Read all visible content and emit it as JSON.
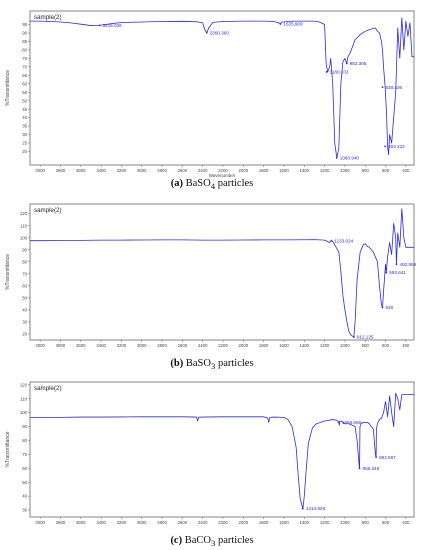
{
  "chart_data": [
    {
      "type": "line",
      "panel_label": "(a)",
      "caption": "BaSO4 particles",
      "caption_sub": "4",
      "caption_rest": " particles",
      "caption_base": "BaSO",
      "sample_label": "sample(2)",
      "ylabel": "%Transmittance",
      "xlabel": "Wavenumber",
      "xlim": [
        4100,
        320
      ],
      "ylim": [
        12,
        103
      ],
      "xticks": [
        4000,
        3800,
        3600,
        3400,
        3200,
        3000,
        2800,
        2600,
        2400,
        2200,
        2000,
        1800,
        1600,
        1400,
        1200,
        1000,
        800,
        600,
        400
      ],
      "yticks": [
        20,
        25,
        30,
        35,
        40,
        45,
        50,
        55,
        60,
        65,
        70,
        75,
        80,
        85,
        90,
        95
      ],
      "color": "#2a2ae8",
      "series": [
        {
          "x": [
            4100,
            4000,
            3900,
            3800,
            3700,
            3600,
            3500,
            3415,
            3300,
            3200,
            3000,
            2800,
            2600,
            2450,
            2400,
            2380,
            2360,
            2340,
            2300,
            2200,
            2000,
            1800,
            1700,
            1650,
            1635,
            1620,
            1500,
            1400,
            1300,
            1250,
            1200,
            1185,
            1170,
            1150,
            1140,
            1120,
            1100,
            1080,
            1060,
            1040,
            1020,
            1000,
            982,
            970,
            950,
            900,
            850,
            800,
            760,
            730,
            700,
            680,
            660,
            640,
            630,
            620,
            604,
            590,
            580,
            570,
            560,
            540,
            520,
            500,
            480,
            460,
            440,
            420,
            400,
            380,
            360,
            340,
            320
          ],
          "y": [
            97,
            97,
            96.8,
            96.5,
            96,
            95.2,
            94.4,
            94.5,
            95.5,
            96.2,
            96.5,
            96.8,
            96.9,
            96.6,
            96,
            92,
            90.2,
            93,
            96.3,
            96.8,
            97,
            97,
            96.8,
            96,
            95.3,
            96.5,
            97,
            97,
            97,
            96.5,
            95,
            72,
            67,
            70,
            75,
            60,
            25,
            16.2,
            22,
            60,
            73,
            75,
            72,
            76,
            78,
            86,
            89,
            91,
            92,
            92.5,
            93,
            91,
            90,
            85,
            80,
            70,
            58,
            42,
            23,
            18,
            30,
            25,
            40,
            55,
            93,
            75,
            99,
            80,
            97,
            88,
            96,
            76,
            76
          ]
        }
      ],
      "annotations": [
        {
          "label": "3415.026",
          "x": 3415,
          "y": 94.5
        },
        {
          "label": "2360.360",
          "x": 2360,
          "y": 90.2
        },
        {
          "label": "1635.909",
          "x": 1635,
          "y": 95.3
        },
        {
          "label": "1180.103",
          "x": 1180,
          "y": 67
        },
        {
          "label": "982.305",
          "x": 982,
          "y": 72
        },
        {
          "label": "1080.940",
          "x": 1080,
          "y": 16.2
        },
        {
          "label": "630.436",
          "x": 630,
          "y": 58
        },
        {
          "label": "604.222",
          "x": 604,
          "y": 23
        }
      ]
    },
    {
      "type": "line",
      "panel_label": "(b)",
      "caption_base": "BaSO",
      "caption_sub": "3",
      "caption_rest": " particles",
      "sample_label": "sample(2)",
      "ylabel": "%Transmittance",
      "xlabel": "",
      "xlim": [
        4100,
        320
      ],
      "ylim": [
        15,
        128
      ],
      "xticks": [
        4000,
        3800,
        3600,
        3400,
        3200,
        3000,
        2800,
        2600,
        2400,
        2200,
        2000,
        1800,
        1600,
        1400,
        1200,
        1000,
        800,
        600,
        400
      ],
      "yticks": [
        20,
        30,
        40,
        50,
        60,
        70,
        80,
        90,
        100,
        110,
        120
      ],
      "color": "#2a2ae8",
      "series": [
        {
          "x": [
            4100,
            4000,
            3800,
            3600,
            3400,
            3200,
            3000,
            2800,
            2600,
            2400,
            2200,
            2000,
            1800,
            1600,
            1400,
            1300,
            1250,
            1200,
            1150,
            1133,
            1120,
            1100,
            1060,
            1040,
            1020,
            1000,
            980,
            960,
            940,
            912,
            900,
            880,
            850,
            820,
            800,
            780,
            760,
            740,
            720,
            700,
            680,
            660,
            640,
            630,
            620,
            600,
            593,
            580,
            560,
            540,
            520,
            500,
            493,
            480,
            460,
            440,
            420,
            400,
            380,
            340,
            320
          ],
          "y": [
            97.5,
            97.5,
            97.7,
            97.8,
            98,
            98,
            98.1,
            98.2,
            98.2,
            98,
            98,
            98.1,
            98.2,
            98.2,
            98.3,
            98.4,
            98.2,
            98,
            96,
            97.5,
            97,
            94,
            88,
            72,
            52,
            40,
            30,
            22,
            19,
            17.5,
            30,
            65,
            88,
            94,
            95,
            93,
            92,
            90,
            88,
            84,
            80,
            60,
            44,
            42,
            55,
            78,
            71,
            84,
            96,
            86,
            112,
            100,
            78,
            104,
            92,
            124,
            100,
            92,
            92,
            92,
            92
          ]
        }
      ],
      "annotations": [
        {
          "label": "1133.024",
          "x": 1133,
          "y": 97.5
        },
        {
          "label": "630",
          "x": 630,
          "y": 42
        },
        {
          "label": "912.125",
          "x": 912,
          "y": 17.5
        },
        {
          "label": "593.641",
          "x": 593,
          "y": 71
        },
        {
          "label": "492.559",
          "x": 492,
          "y": 78
        }
      ]
    },
    {
      "type": "line",
      "panel_label": "(c)",
      "caption_base": "BaCO",
      "caption_sub": "3",
      "caption_rest": " particles",
      "sample_label": "sample(2)",
      "ylabel": "%Transmittance",
      "xlabel": "",
      "xlim": [
        4100,
        320
      ],
      "ylim": [
        25,
        122
      ],
      "xticks": [
        4000,
        3800,
        3600,
        3400,
        3200,
        3000,
        2800,
        2600,
        2400,
        2200,
        2000,
        1800,
        1600,
        1400,
        1200,
        1000,
        800,
        600,
        400
      ],
      "yticks": [
        30,
        40,
        50,
        60,
        70,
        80,
        90,
        100,
        110,
        120
      ],
      "color": "#2a2ae8",
      "series": [
        {
          "x": [
            4100,
            4000,
            3800,
            3600,
            3400,
            3200,
            3000,
            2800,
            2600,
            2460,
            2450,
            2440,
            2400,
            2200,
            2000,
            1800,
            1760,
            1750,
            1740,
            1700,
            1600,
            1560,
            1520,
            1480,
            1460,
            1440,
            1414,
            1400,
            1380,
            1360,
            1320,
            1280,
            1240,
            1200,
            1120,
            1080,
            1060,
            1055,
            1050,
            1040,
            1000,
            960,
            900,
            880,
            860,
            856,
            852,
            840,
            820,
            800,
            780,
            760,
            740,
            720,
            700,
            693,
            690,
            680,
            660,
            640,
            620,
            600,
            580,
            560,
            540,
            520,
            500,
            480,
            460,
            440,
            420,
            400,
            380,
            340,
            320
          ],
          "y": [
            96.5,
            96.5,
            96.6,
            96.8,
            96.8,
            96.9,
            97,
            97,
            97,
            96.8,
            94,
            96.7,
            96.8,
            97,
            97,
            97,
            96,
            93,
            96.5,
            96.8,
            96.6,
            95,
            90,
            75,
            55,
            38,
            31,
            40,
            60,
            78,
            89,
            92,
            93,
            94,
            95,
            94.5,
            93,
            91,
            94,
            94,
            92,
            92,
            90,
            80,
            62,
            60,
            90,
            92,
            93,
            93,
            93,
            92,
            90,
            88,
            70,
            68,
            88,
            92,
            95,
            96,
            100,
            108,
            97,
            112,
            100,
            90,
            114,
            110,
            102,
            113,
            113,
            113,
            113,
            113,
            113
          ]
        }
      ],
      "annotations": [
        {
          "label": "1414.826",
          "x": 1414,
          "y": 31
        },
        {
          "label": "1059.569",
          "x": 1059,
          "y": 93
        },
        {
          "label": "856.346",
          "x": 856,
          "y": 60
        },
        {
          "label": "692.867",
          "x": 693,
          "y": 68
        }
      ]
    }
  ]
}
